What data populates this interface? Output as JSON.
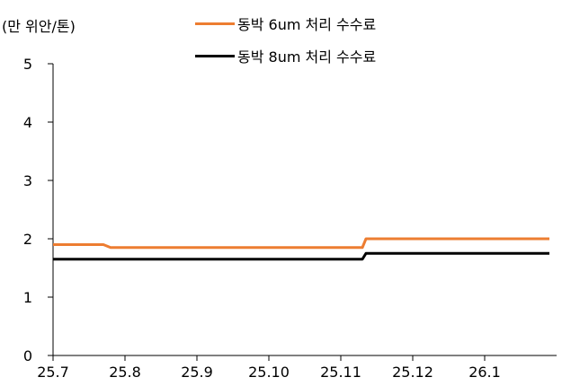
{
  "chart_data": {
    "type": "line",
    "unit_label": "(만 위안/톤)",
    "y_ticks": [
      "0",
      "1",
      "2",
      "3",
      "4",
      "5"
    ],
    "ylim": [
      0,
      5
    ],
    "x_ticks": [
      "25.7",
      "25.8",
      "25.9",
      "25.10",
      "25.11",
      "25.12",
      "26.1"
    ],
    "x_domain": [
      0,
      6.9
    ],
    "grid": false,
    "legend_placement": "top-center",
    "series": [
      {
        "name": "동박 6um 처리 수수료",
        "color": "#ED7D31",
        "x": [
          0,
          0.7,
          0.8,
          4.3,
          4.35,
          6.9
        ],
        "y": [
          1.9,
          1.9,
          1.85,
          1.85,
          2.0,
          2.0
        ]
      },
      {
        "name": "동박 8um 처리 수수료",
        "color": "#000000",
        "x": [
          0,
          4.3,
          4.35,
          6.9
        ],
        "y": [
          1.65,
          1.65,
          1.75,
          1.75
        ]
      }
    ]
  }
}
